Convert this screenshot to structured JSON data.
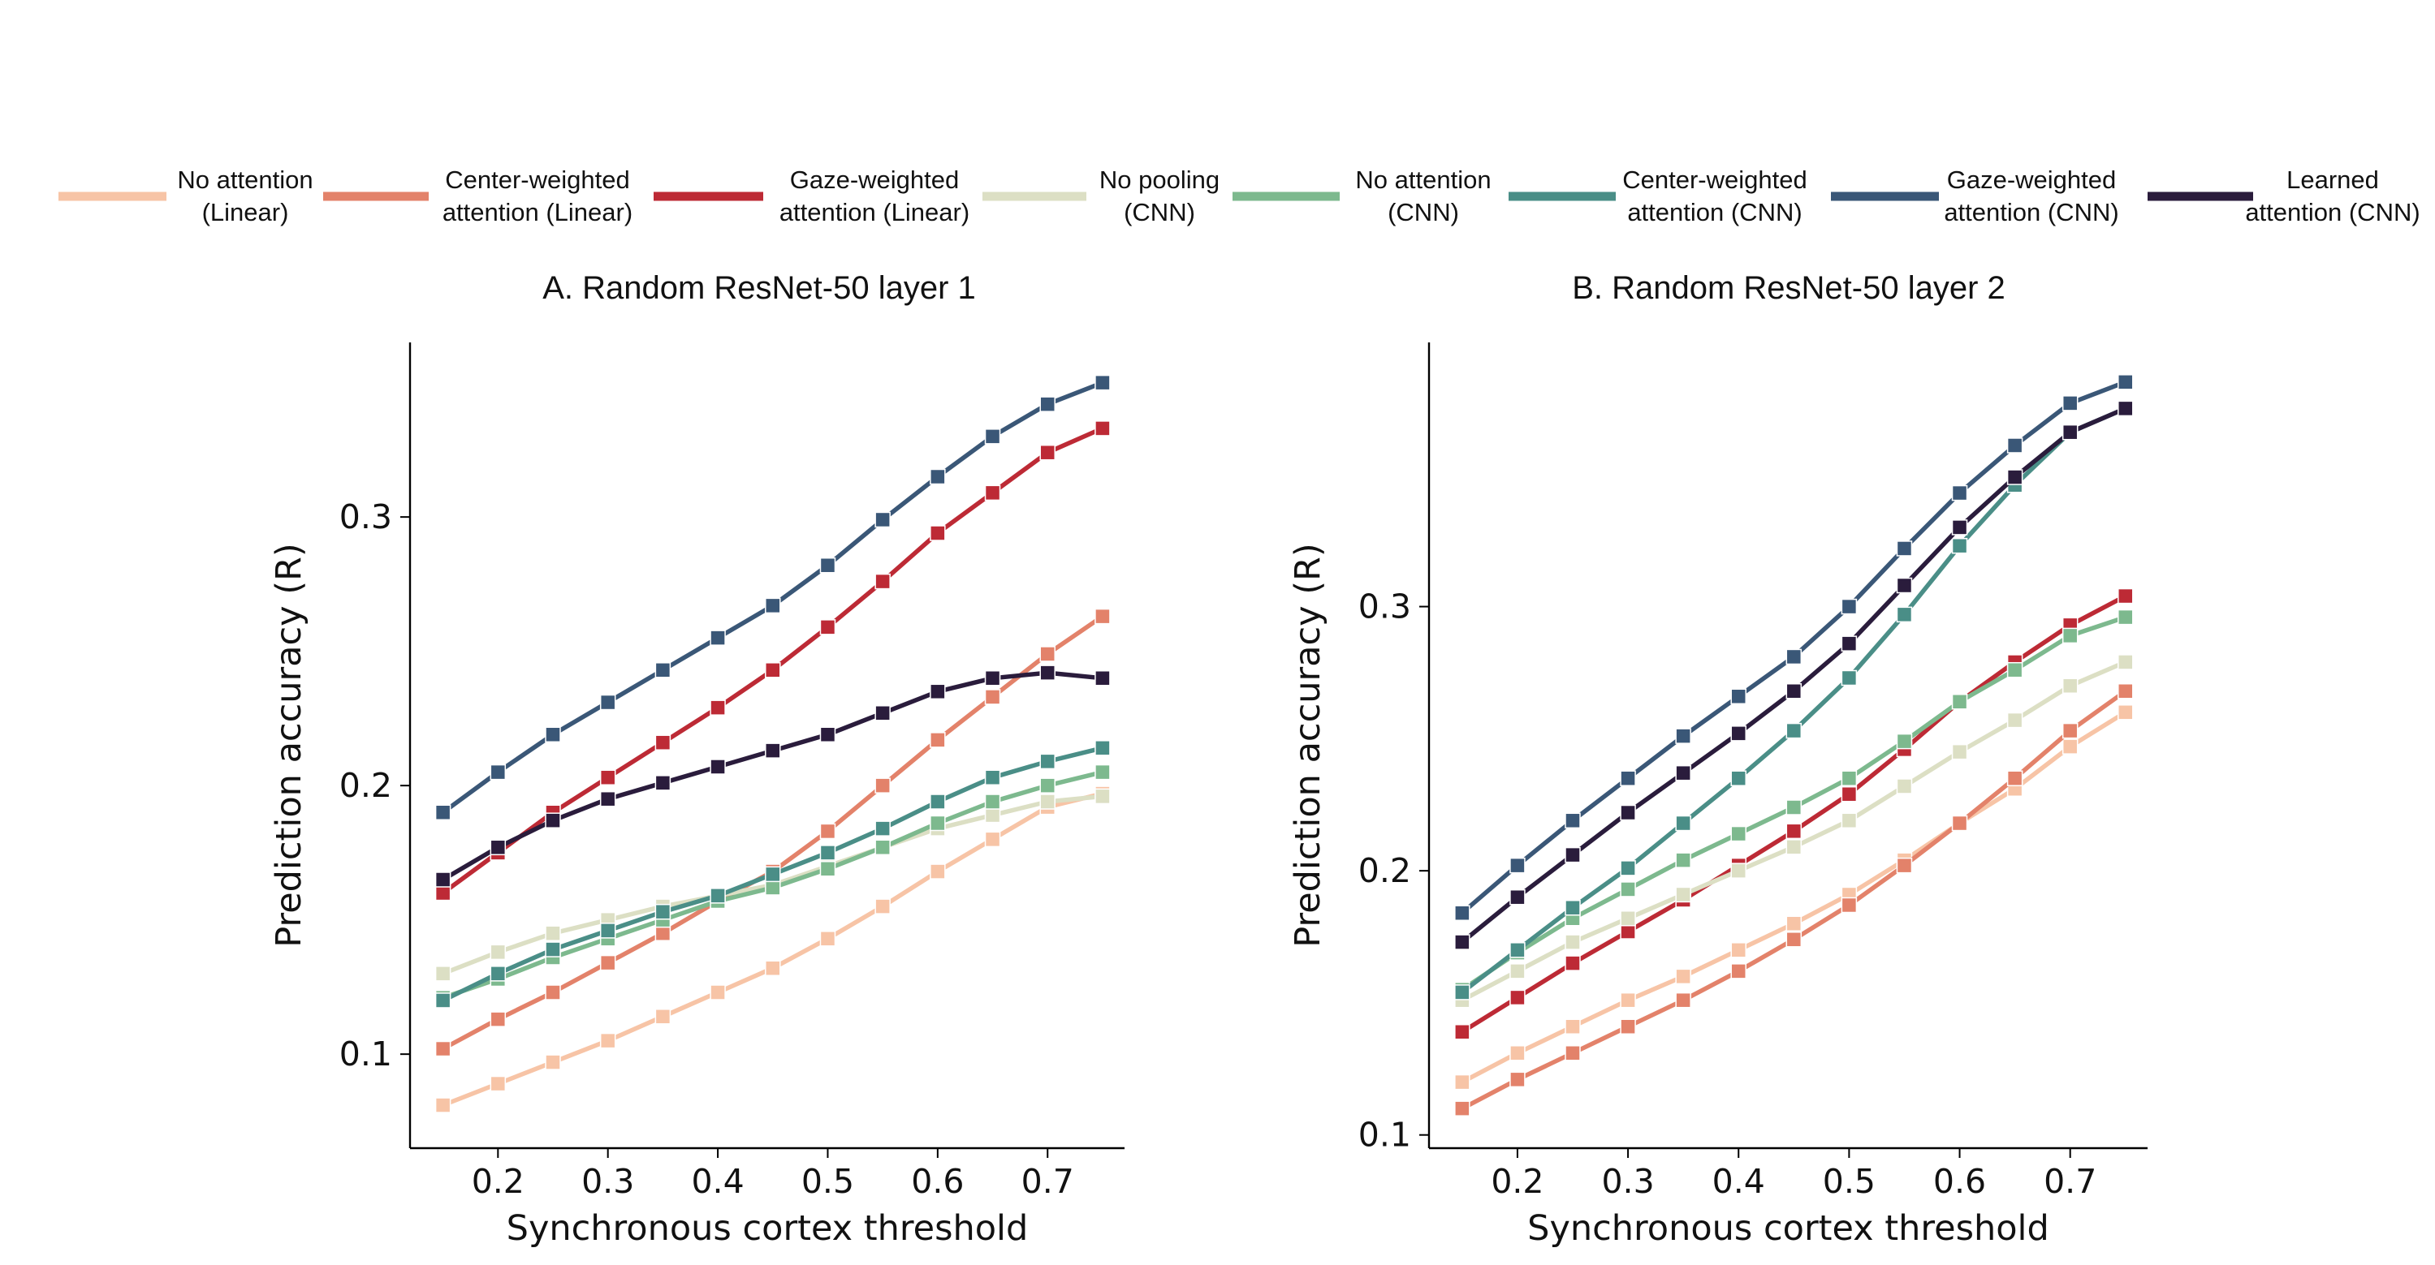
{
  "chart_data": {
    "type": "line",
    "shared_x": [
      0.15,
      0.2,
      0.25,
      0.3,
      0.35,
      0.4,
      0.45,
      0.5,
      0.55,
      0.6,
      0.65,
      0.7,
      0.75
    ],
    "legend": [
      {
        "line1": "No attention",
        "line2": "(Linear)",
        "color": "#f7c4a6"
      },
      {
        "line1": "Center-weighted",
        "line2": "attention (Linear)",
        "color": "#e3826a"
      },
      {
        "line1": "Gaze-weighted",
        "line2": "attention (Linear)",
        "color": "#bd2a35"
      },
      {
        "line1": "No pooling",
        "line2": "(CNN)",
        "color": "#dcdfc4"
      },
      {
        "line1": "No attention",
        "line2": "(CNN)",
        "color": "#7db98e"
      },
      {
        "line1": "Center-weighted",
        "line2": "attention (CNN)",
        "color": "#4a8e87"
      },
      {
        "line1": "Gaze-weighted",
        "line2": "attention (CNN)",
        "color": "#3a5777"
      },
      {
        "line1": "Learned",
        "line2": "attention (CNN)",
        "color": "#2a1c3c"
      }
    ],
    "panels": [
      {
        "title": "A. Random ResNet-50 layer 1",
        "xlabel": "Synchronous cortex threshold",
        "ylabel": "Prediction accuracy (R)",
        "xlim": [
          0.12,
          0.77
        ],
        "ylim": [
          0.065,
          0.365
        ],
        "xticks": [
          "0.2",
          "0.3",
          "0.4",
          "0.5",
          "0.6",
          "0.7"
        ],
        "yticks": [
          "0.1",
          "0.2",
          "0.3"
        ],
        "series": [
          {
            "name": "No attention (Linear)",
            "values": [
              0.081,
              0.089,
              0.097,
              0.105,
              0.114,
              0.123,
              0.132,
              0.143,
              0.155,
              0.168,
              0.18,
              0.192,
              0.197
            ]
          },
          {
            "name": "Center-weighted attention (Linear)",
            "values": [
              0.102,
              0.113,
              0.123,
              0.134,
              0.145,
              0.157,
              0.168,
              0.183,
              0.2,
              0.217,
              0.233,
              0.249,
              0.263
            ]
          },
          {
            "name": "Gaze-weighted attention (Linear)",
            "values": [
              0.16,
              0.175,
              0.19,
              0.203,
              0.216,
              0.229,
              0.243,
              0.259,
              0.276,
              0.294,
              0.309,
              0.324,
              0.333
            ]
          },
          {
            "name": "No pooling (CNN)",
            "values": [
              0.13,
              0.138,
              0.145,
              0.15,
              0.155,
              0.159,
              0.163,
              0.17,
              0.177,
              0.184,
              0.189,
              0.194,
              0.196
            ]
          },
          {
            "name": "No attention (CNN)",
            "values": [
              0.121,
              0.128,
              0.136,
              0.143,
              0.15,
              0.157,
              0.162,
              0.169,
              0.177,
              0.186,
              0.194,
              0.2,
              0.205
            ]
          },
          {
            "name": "Center-weighted attention (CNN)",
            "values": [
              0.12,
              0.13,
              0.139,
              0.146,
              0.153,
              0.159,
              0.167,
              0.175,
              0.184,
              0.194,
              0.203,
              0.209,
              0.214
            ]
          },
          {
            "name": "Gaze-weighted attention (CNN)",
            "values": [
              0.19,
              0.205,
              0.219,
              0.231,
              0.243,
              0.255,
              0.267,
              0.282,
              0.299,
              0.315,
              0.33,
              0.342,
              0.35
            ]
          },
          {
            "name": "Learned attention (CNN)",
            "values": [
              0.165,
              0.177,
              0.187,
              0.195,
              0.201,
              0.207,
              0.213,
              0.219,
              0.227,
              0.235,
              0.24,
              0.242,
              0.24
            ]
          }
        ]
      },
      {
        "title": "B. Random ResNet-50 layer 2",
        "xlabel": "Synchronous cortex threshold",
        "ylabel": "Prediction accuracy (R)",
        "xlim": [
          0.12,
          0.77
        ],
        "ylim": [
          0.095,
          0.4
        ],
        "xticks": [
          "0.2",
          "0.3",
          "0.4",
          "0.5",
          "0.6",
          "0.7"
        ],
        "yticks": [
          "0.1",
          "0.2",
          "0.3"
        ],
        "series": [
          {
            "name": "No attention (Linear)",
            "values": [
              0.12,
              0.131,
              0.141,
              0.151,
              0.16,
              0.17,
              0.18,
              0.191,
              0.204,
              0.218,
              0.231,
              0.247,
              0.26
            ]
          },
          {
            "name": "Center-weighted attention (Linear)",
            "values": [
              0.11,
              0.121,
              0.131,
              0.141,
              0.151,
              0.162,
              0.174,
              0.187,
              0.202,
              0.218,
              0.235,
              0.253,
              0.268
            ]
          },
          {
            "name": "Gaze-weighted attention (Linear)",
            "values": [
              0.139,
              0.152,
              0.165,
              0.177,
              0.189,
              0.202,
              0.215,
              0.229,
              0.246,
              0.264,
              0.279,
              0.293,
              0.304
            ]
          },
          {
            "name": "No pooling (CNN)",
            "values": [
              0.151,
              0.162,
              0.173,
              0.182,
              0.191,
              0.2,
              0.209,
              0.219,
              0.232,
              0.245,
              0.257,
              0.27,
              0.279
            ]
          },
          {
            "name": "No attention (CNN)",
            "values": [
              0.155,
              0.169,
              0.182,
              0.193,
              0.204,
              0.214,
              0.224,
              0.235,
              0.249,
              0.264,
              0.276,
              0.289,
              0.296
            ]
          },
          {
            "name": "Center-weighted attention (CNN)",
            "values": [
              0.154,
              0.17,
              0.186,
              0.201,
              0.218,
              0.235,
              0.253,
              0.273,
              0.297,
              0.323,
              0.346,
              0.366,
              0.375
            ]
          },
          {
            "name": "Gaze-weighted attention (CNN)",
            "values": [
              0.184,
              0.202,
              0.219,
              0.235,
              0.251,
              0.266,
              0.281,
              0.3,
              0.322,
              0.343,
              0.361,
              0.377,
              0.385
            ]
          },
          {
            "name": "Learned attention (CNN)",
            "values": [
              0.173,
              0.19,
              0.206,
              0.222,
              0.237,
              0.252,
              0.268,
              0.286,
              0.308,
              0.33,
              0.349,
              0.366,
              0.375
            ]
          }
        ]
      }
    ]
  }
}
